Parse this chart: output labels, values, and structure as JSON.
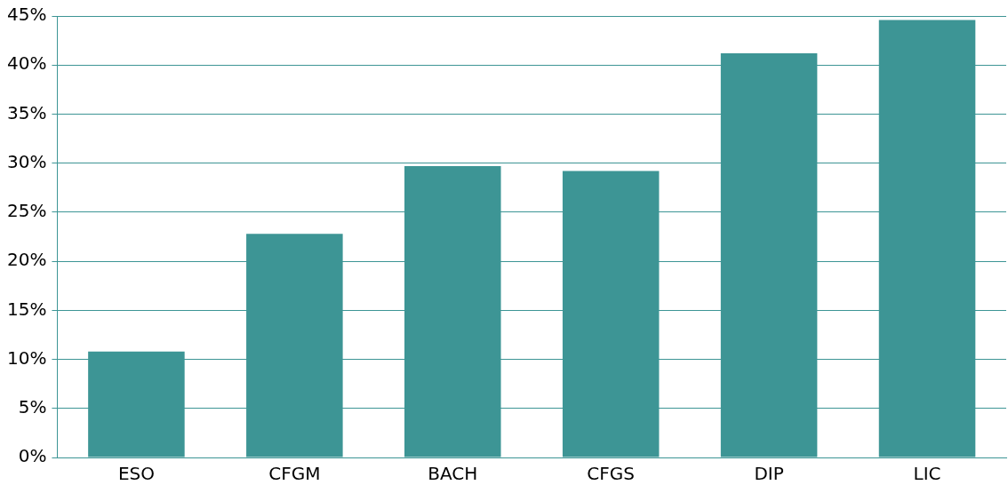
{
  "chart_data": {
    "type": "bar",
    "categories": [
      "ESO",
      "CFGM",
      "BACH",
      "CFGS",
      "DIP",
      "LIC"
    ],
    "values": [
      10.8,
      22.8,
      29.7,
      29.2,
      41.2,
      44.6
    ],
    "color": "#3d9595",
    "ylim": [
      0,
      45
    ],
    "yticks": [
      {
        "value": 0,
        "label": "0%"
      },
      {
        "value": 5,
        "label": "5%"
      },
      {
        "value": 10,
        "label": "10%"
      },
      {
        "value": 15,
        "label": "15%"
      },
      {
        "value": 20,
        "label": "20%"
      },
      {
        "value": 25,
        "label": "25%"
      },
      {
        "value": 30,
        "label": "30%"
      },
      {
        "value": 35,
        "label": "35%"
      },
      {
        "value": 40,
        "label": "40%"
      },
      {
        "value": 45,
        "label": "45%"
      }
    ],
    "grid": "y",
    "legend": false
  }
}
